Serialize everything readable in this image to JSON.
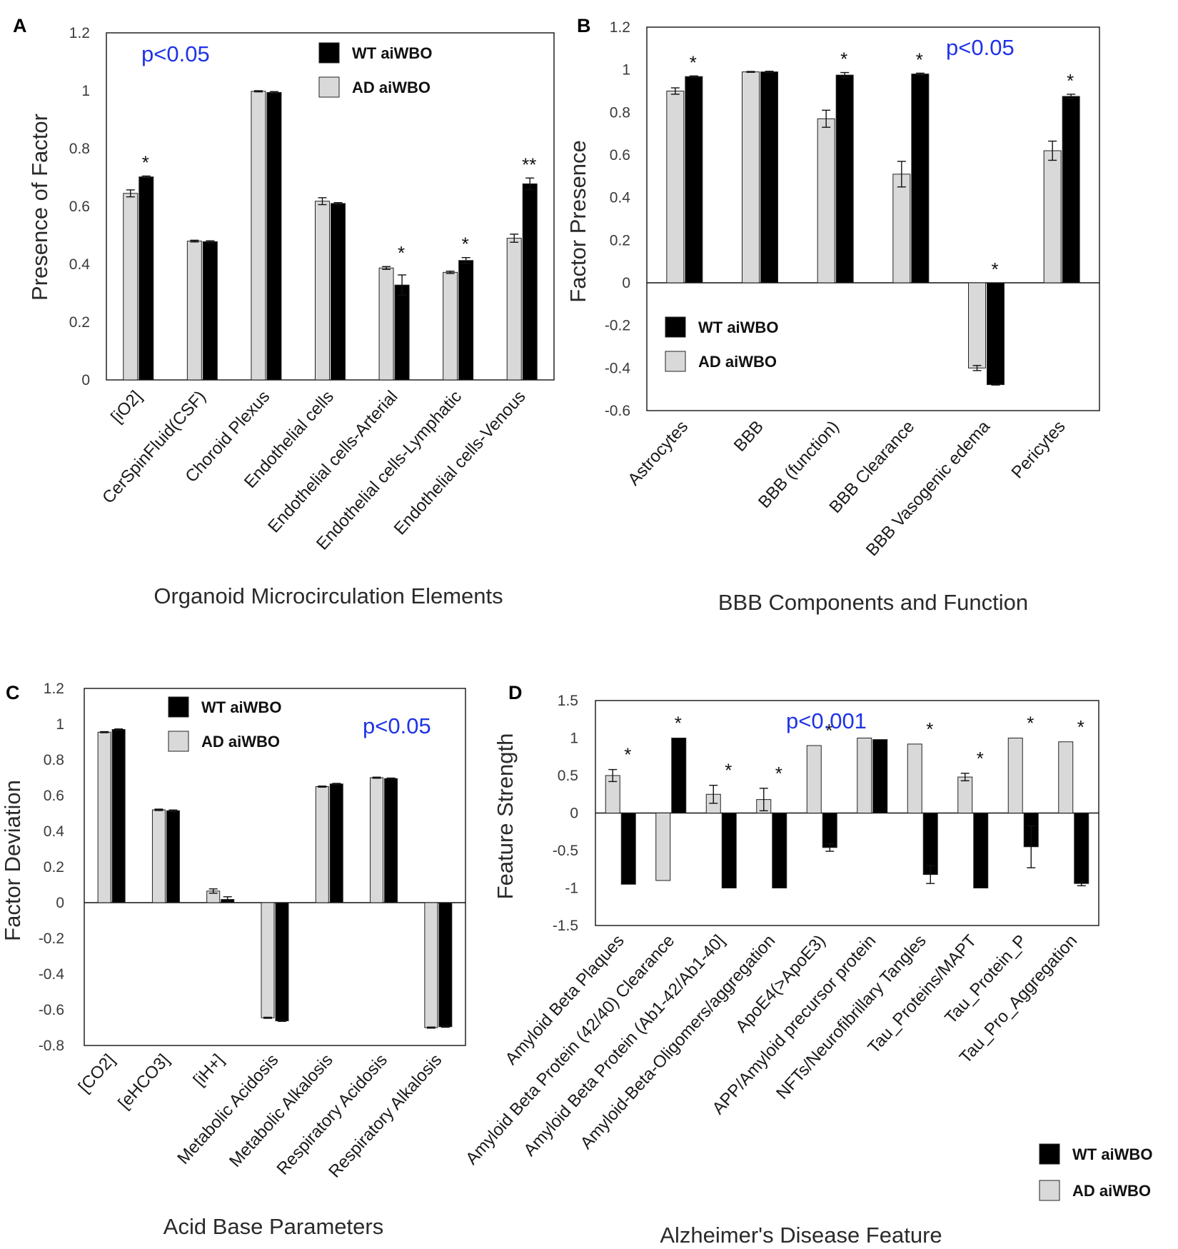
{
  "series_colors": {
    "WT aiWBO": "#000000",
    "AD aiWBO": "#d9d9d9"
  },
  "chart_data": [
    {
      "panel": "A",
      "type": "bar",
      "title": "",
      "xlabel": "Organoid Microcirculation  Elements",
      "ylabel": "Presence of Factor",
      "ylim": [
        0,
        1.2
      ],
      "yticks": [
        0,
        0.2,
        0.4,
        0.6,
        0.8,
        1,
        1.2
      ],
      "pvalue": "p<0.05",
      "legend": [
        "WT aiWBO",
        "AD aiWBO"
      ],
      "legend_position": "top-right",
      "categories": [
        "[iO2]",
        "CerSpinFluid(CSF)",
        "Choroid Plexus",
        "Endothelial cells",
        "Endothelial cells-Arterial",
        "Endothelial cells-Lymphatic",
        "Endothelial cells-Venous"
      ],
      "series": [
        {
          "name": "AD aiWBO",
          "values": [
            0.645,
            0.48,
            0.998,
            0.618,
            0.387,
            0.372,
            0.49
          ],
          "errors": [
            0.012,
            0.003,
            0.002,
            0.012,
            0.005,
            0.004,
            0.014
          ]
        },
        {
          "name": "WT aiWBO",
          "values": [
            0.702,
            0.478,
            0.994,
            0.61,
            0.328,
            0.413,
            0.678
          ],
          "errors": [
            0.003,
            0.003,
            0.003,
            0.003,
            0.035,
            0.01,
            0.02
          ]
        }
      ],
      "significance": [
        "*",
        "",
        "",
        "",
        "*",
        "*",
        "**"
      ]
    },
    {
      "panel": "B",
      "type": "bar",
      "title": "",
      "xlabel": "BBB Components  and Function",
      "ylabel": "Factor Presence",
      "ylim": [
        -0.6,
        1.2
      ],
      "yticks": [
        -0.6,
        -0.4,
        -0.2,
        0,
        0.2,
        0.4,
        0.6,
        0.8,
        1,
        1.2
      ],
      "pvalue": "p<0.05",
      "legend": [
        "WT aiWBO",
        "AD aiWBO"
      ],
      "legend_position": "bottom-left",
      "categories": [
        "Astrocytes",
        "BBB",
        "BBB (function)",
        "BBB Clearance",
        "BBB Vasogenic edema",
        "Pericytes"
      ],
      "series": [
        {
          "name": "AD aiWBO",
          "values": [
            0.9,
            0.99,
            0.77,
            0.51,
            -0.4,
            0.62
          ],
          "errors": [
            0.015,
            0.002,
            0.04,
            0.06,
            0.012,
            0.045
          ]
        },
        {
          "name": "WT aiWBO",
          "values": [
            0.968,
            0.99,
            0.975,
            0.98,
            -0.478,
            0.875
          ],
          "errors": [
            0.003,
            0.003,
            0.012,
            0.004,
            0.002,
            0.01
          ]
        }
      ],
      "significance": [
        "*",
        "",
        "*",
        "*",
        "*",
        "*"
      ]
    },
    {
      "panel": "C",
      "type": "bar",
      "title": "",
      "xlabel": "Acid Base Parameters",
      "ylabel": "Factor Deviation",
      "ylim": [
        -0.8,
        1.2
      ],
      "yticks": [
        -0.8,
        -0.6,
        -0.4,
        -0.2,
        0,
        0.2,
        0.4,
        0.6,
        0.8,
        1,
        1.2
      ],
      "pvalue": "p<0.05",
      "legend": [
        "WT aiWBO",
        "AD aiWBO"
      ],
      "legend_position": "top-center",
      "categories": [
        "[CO2]",
        "[eHCO3]",
        "[iH+]",
        "Metabolic Acidosis",
        "Metabolic Alkalosis",
        "Respiratory Acidosis",
        "Respiratory Alkalosis"
      ],
      "series": [
        {
          "name": "AD aiWBO",
          "values": [
            0.955,
            0.52,
            0.065,
            -0.645,
            0.65,
            0.7,
            -0.7
          ],
          "errors": [
            0.003,
            0.004,
            0.012,
            0.003,
            0.003,
            0.003,
            0.003
          ]
        },
        {
          "name": "WT aiWBO",
          "values": [
            0.97,
            0.515,
            0.018,
            -0.662,
            0.665,
            0.695,
            -0.695
          ],
          "errors": [
            0.003,
            0.004,
            0.015,
            0.003,
            0.003,
            0.003,
            0.003
          ]
        }
      ],
      "significance": [
        "",
        "",
        "",
        "",
        "",
        "",
        ""
      ]
    },
    {
      "panel": "D",
      "type": "bar",
      "title": "",
      "xlabel": "Alzheimer's  Disease Feature",
      "ylabel": "Feature Strength",
      "ylim": [
        -1.5,
        1.5
      ],
      "yticks": [
        -1.5,
        -1,
        -0.5,
        0,
        0.5,
        1,
        1.5
      ],
      "pvalue": "p<0.001",
      "legend": [
        "WT aiWBO",
        "AD aiWBO"
      ],
      "legend_position": "bottom-right (outside)",
      "categories": [
        "Amyloid Beta Plaques",
        "Amyloid Beta Protein (42/40) Clearance",
        "Amyloid Beta Protein (Ab1-42/Ab1-40]",
        "Amyloid-Beta-Oligomers/aggregation",
        "ApoE4(>ApoE3)",
        "APP/Amyloid precursor protein",
        "NFTs/Neurofibrillary Tangles",
        "Tau_Proteins/MAPT",
        "Tau_Protein_P",
        "Tau_Pro_Aggregation"
      ],
      "series": [
        {
          "name": "AD aiWBO",
          "values": [
            0.5,
            -0.9,
            0.25,
            0.18,
            0.9,
            1.0,
            0.92,
            0.48,
            1.0,
            0.95
          ],
          "errors": [
            0.08,
            0.0,
            0.12,
            0.15,
            0.0,
            0.0,
            0.0,
            0.05,
            0.0,
            0.0
          ]
        },
        {
          "name": "WT aiWBO",
          "values": [
            -0.95,
            1.0,
            -1.0,
            -1.0,
            -0.46,
            0.98,
            -0.82,
            -1.0,
            -0.45,
            -0.94
          ],
          "errors": [
            0.0,
            0.0,
            0.0,
            0.0,
            0.05,
            0.0,
            0.12,
            0.0,
            0.28,
            0.03
          ]
        }
      ],
      "significance": [
        "*",
        "*",
        "*",
        "*",
        "*",
        "",
        "*",
        "*",
        "*",
        "*"
      ]
    }
  ]
}
